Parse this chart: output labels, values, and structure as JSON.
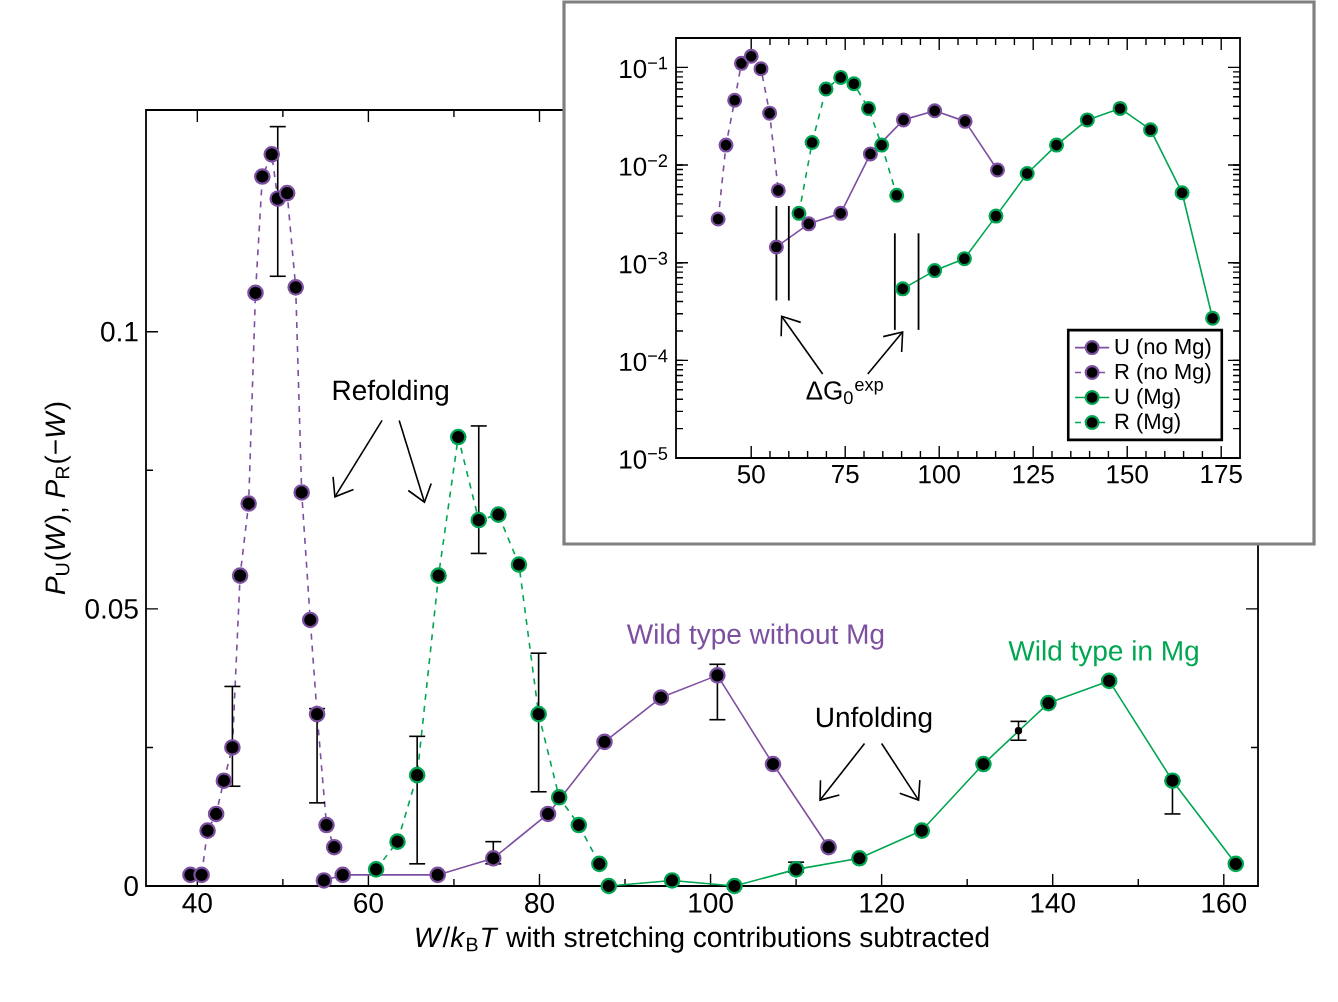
{
  "chart_data": [
    {
      "type": "line",
      "xlabel": "*W*/*k*$_{B}$*T* with stretching contributions subtracted",
      "ylabel": "*P*$_{U}$(*W*), *P*$_{R}$(−*W*)",
      "xlim": [
        34,
        164
      ],
      "ylim": [
        0,
        0.14
      ],
      "xticks": [
        40,
        60,
        80,
        100,
        120,
        140,
        160
      ],
      "yticks": [
        0,
        0.05,
        0.1
      ],
      "marker": "circle",
      "series": [
        {
          "color": "#7d4fa1",
          "line_style": "solid",
          "x": [
            54.8,
            57.0,
            68.1,
            74.6,
            81.0,
            87.6,
            94.2,
            100.8,
            107.3,
            113.8
          ],
          "values": [
            0.001,
            0.002,
            0.002,
            0.005,
            0.013,
            0.026,
            0.034,
            0.038,
            0.022,
            0.007
          ],
          "errors": [
            null,
            null,
            null,
            [
              0.004,
              0.008
            ],
            null,
            null,
            null,
            [
              0.03,
              0.04
            ],
            null,
            null
          ]
        },
        {
          "color": "#7d4fa1",
          "line_style": "dashed",
          "x": [
            39.2,
            40.5,
            41.2,
            42.2,
            43.1,
            44.1,
            45.0,
            46.0,
            46.8,
            47.6,
            48.7,
            49.4,
            50.5,
            51.5,
            52.2,
            53.2,
            54.0,
            55.1,
            56.0
          ],
          "values": [
            0.002,
            0.002,
            0.01,
            0.013,
            0.019,
            0.025,
            0.056,
            0.069,
            0.107,
            0.128,
            0.132,
            0.124,
            0.125,
            0.108,
            0.071,
            0.048,
            0.031,
            0.011,
            0.007
          ],
          "errors": [
            null,
            null,
            null,
            null,
            null,
            [
              0.018,
              0.036
            ],
            null,
            null,
            null,
            null,
            null,
            [
              0.11,
              0.137
            ],
            null,
            null,
            null,
            null,
            [
              0.015,
              0.032
            ],
            null,
            null
          ]
        },
        {
          "color": "#00a651",
          "line_style": "solid",
          "x": [
            88.1,
            95.5,
            102.8,
            110.0,
            117.4,
            124.7,
            131.9,
            139.5,
            146.6,
            154.0,
            161.4
          ],
          "values": [
            0.0,
            0.001,
            0.0,
            0.003,
            0.005,
            0.01,
            0.022,
            0.033,
            0.037,
            0.019,
            0.004
          ],
          "errors": [
            null,
            null,
            null,
            [
              0.0025,
              0.0043
            ],
            null,
            null,
            null,
            null,
            null,
            [
              0.013,
              0.019
            ],
            null
          ]
        },
        {
          "type": "scatter",
          "marker": "circle",
          "color": "#000000",
          "x": [
            136.0
          ],
          "values": [
            0.028
          ],
          "errors": [
            0.0017
          ]
        },
        {
          "color": "#00a651",
          "line_style": "dashed",
          "x": [
            60.9,
            63.4,
            65.7,
            68.2,
            70.5,
            72.9,
            75.2,
            77.6,
            79.9,
            82.3,
            84.6,
            87.0
          ],
          "values": [
            0.003,
            0.008,
            0.02,
            0.056,
            0.081,
            0.066,
            0.067,
            0.058,
            0.031,
            0.016,
            0.011,
            0.004
          ],
          "errors": [
            null,
            null,
            [
              0.004,
              0.027
            ],
            null,
            null,
            [
              0.06,
              0.083
            ],
            null,
            null,
            [
              0.017,
              0.042
            ],
            null,
            null,
            null
          ]
        }
      ],
      "annotations": [
        "Refolding",
        "Unfolding",
        "Wild type without Mg",
        "Wild type in Mg"
      ]
    },
    {
      "type": "line",
      "log": "y",
      "xlim": [
        30,
        180
      ],
      "ylim": [
        1e-05,
        0.2
      ],
      "xticks": [
        50,
        75,
        100,
        125,
        150,
        175
      ],
      "yticks": [
        {
          "value": 1e-05,
          "label": "10$^{−5}$"
        },
        {
          "value": 0.0001,
          "label": "10$^{−4}$"
        },
        {
          "value": 0.001,
          "label": "10$^{−3}$"
        },
        {
          "value": 0.01,
          "label": "10$^{−2}$"
        },
        {
          "value": 0.1,
          "label": "10$^{−1}$"
        }
      ],
      "marker": "circle",
      "legend": "bottom right",
      "series": [
        {
          "name": "U (no Mg)",
          "color": "#7d4fa1",
          "line_style": "solid",
          "x": [
            56.7,
            65.3,
            73.8,
            81.7,
            90.5,
            98.8,
            106.9,
            115.5
          ],
          "values": [
            0.00145,
            0.0025,
            0.0032,
            0.013,
            0.029,
            0.036,
            0.028,
            0.0089
          ]
        },
        {
          "name": "R (no Mg)",
          "color": "#7d4fa1",
          "line_style": "dashed",
          "x": [
            41.2,
            43.3,
            45.6,
            47.4,
            50.0,
            52.6,
            54.9,
            57.2
          ],
          "values": [
            0.0028,
            0.016,
            0.046,
            0.11,
            0.13,
            0.097,
            0.034,
            0.0055
          ]
        },
        {
          "name": "U (Mg)",
          "color": "#00a651",
          "line_style": "solid",
          "x": [
            90.3,
            98.8,
            106.7,
            115.1,
            123.4,
            131.2,
            139.4,
            148.1,
            156.2,
            164.6,
            172.7
          ],
          "values": [
            0.00054,
            0.00083,
            0.0011,
            0.003,
            0.0082,
            0.016,
            0.029,
            0.038,
            0.023,
            0.0052,
            0.00027
          ]
        },
        {
          "name": "R (Mg)",
          "color": "#00a651",
          "line_style": "dashed",
          "x": [
            62.7,
            66.2,
            69.9,
            73.8,
            77.3,
            81.2,
            84.7,
            88.7
          ],
          "values": [
            0.0032,
            0.017,
            0.06,
            0.079,
            0.068,
            0.038,
            0.016,
            0.0049
          ]
        }
      ],
      "ref_lines": [
        {
          "axis": "x",
          "value": 56.7
        },
        {
          "axis": "x",
          "value": 60.0
        },
        {
          "axis": "x",
          "value": 88.2
        },
        {
          "axis": "x",
          "value": 94.5
        }
      ],
      "annotations": [
        {
          "text": "ΔG$_{0}$$^{exp}$",
          "x": 90.5,
          "y": 0.0002
        }
      ]
    }
  ]
}
